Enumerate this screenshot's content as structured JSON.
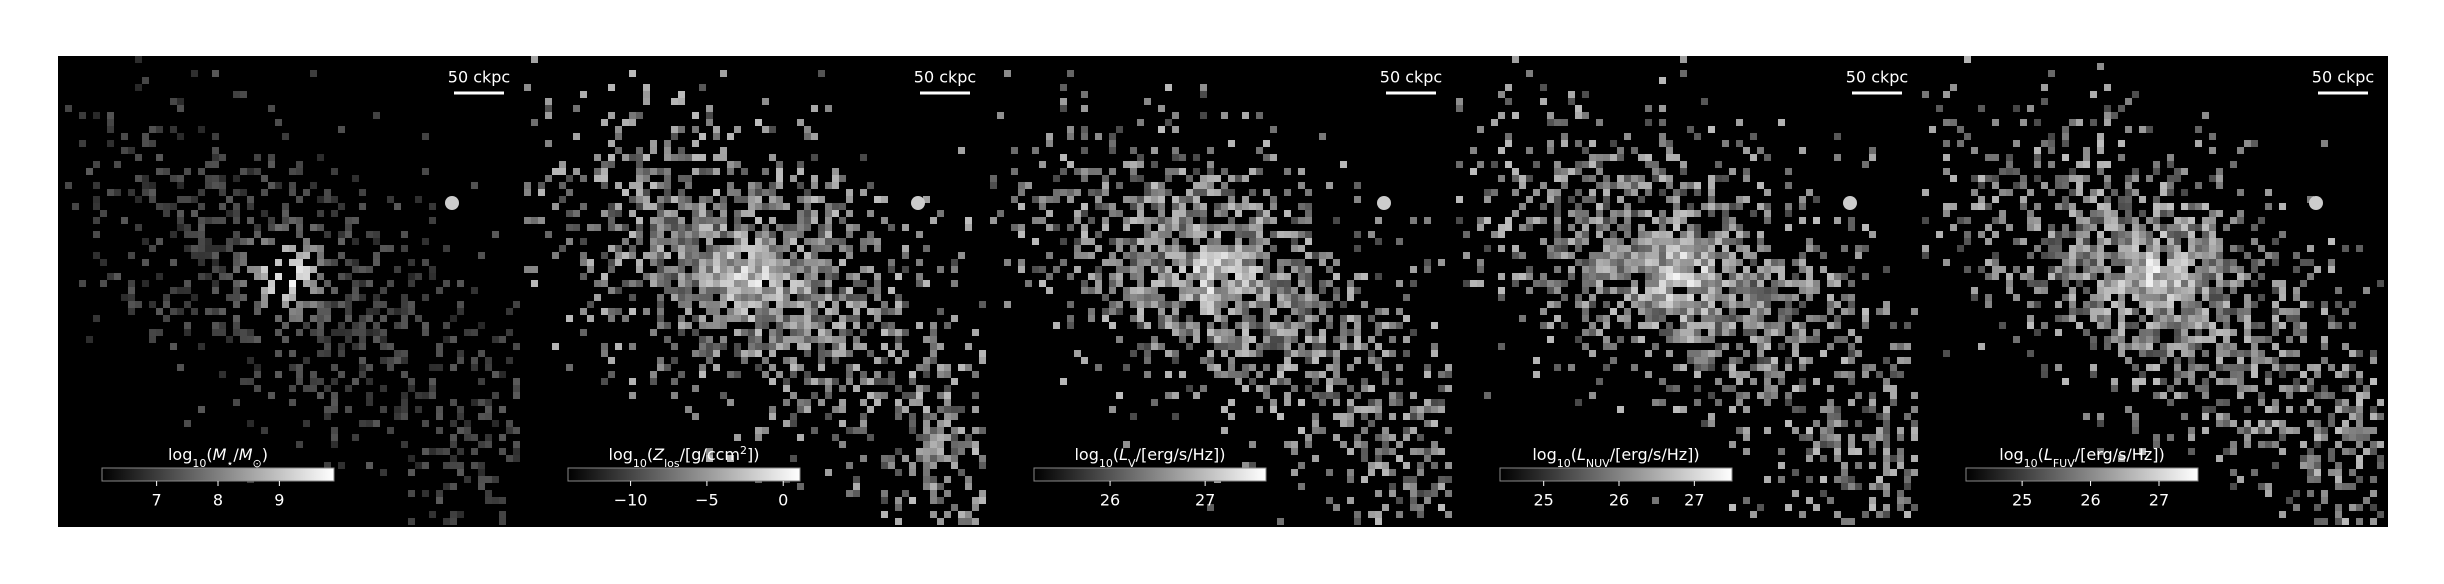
{
  "panels": [
    {
      "scale_label": "50 ckpc",
      "colorbar": {
        "label": [
          {
            "text": "log"
          },
          {
            "text": "10",
            "sub": true
          },
          {
            "text": "("
          },
          {
            "text": "M",
            "italic": true
          },
          {
            "text": "⋆",
            "sub": true
          },
          {
            "text": "/"
          },
          {
            "text": "M",
            "italic": true
          },
          {
            "text": "⊙",
            "sub": true
          },
          {
            "text": ")"
          }
        ],
        "range": [
          6.11,
          9.89
        ],
        "ticks": [
          7,
          8,
          9
        ]
      }
    },
    {
      "scale_label": "50 ckpc",
      "colorbar": {
        "label": [
          {
            "text": "log"
          },
          {
            "text": "10",
            "sub": true
          },
          {
            "text": "("
          },
          {
            "text": "Z",
            "italic": true
          },
          {
            "text": "los",
            "sub": true
          },
          {
            "text": "/[g/ccm"
          },
          {
            "text": "2",
            "sup": true
          },
          {
            "text": "])"
          }
        ],
        "range": [
          -14.1,
          1.1
        ],
        "ticks": [
          {
            "value": -10,
            "label": "−10"
          },
          {
            "value": -5,
            "label": "−5"
          },
          0
        ]
      }
    },
    {
      "scale_label": "50 ckpc",
      "colorbar": {
        "label": [
          {
            "text": "log"
          },
          {
            "text": "10",
            "sub": true
          },
          {
            "text": "("
          },
          {
            "text": "L",
            "italic": true
          },
          {
            "text": "V",
            "sub": true
          },
          {
            "text": "/[erg/s/Hz])"
          }
        ],
        "range": [
          25.2,
          27.64
        ],
        "ticks": [
          26,
          27
        ]
      }
    },
    {
      "scale_label": "50 ckpc",
      "colorbar": {
        "label": [
          {
            "text": "log"
          },
          {
            "text": "10",
            "sub": true
          },
          {
            "text": "("
          },
          {
            "text": "L",
            "italic": true
          },
          {
            "text": "NUV",
            "sub": true
          },
          {
            "text": "/[erg/s/Hz])"
          }
        ],
        "range": [
          24.42,
          27.5
        ],
        "ticks": [
          25,
          26,
          27
        ]
      }
    },
    {
      "scale_label": "50 ckpc",
      "colorbar": {
        "label": [
          {
            "text": "log"
          },
          {
            "text": "10",
            "sub": true
          },
          {
            "text": "("
          },
          {
            "text": "L",
            "italic": true
          },
          {
            "text": "FUV",
            "sub": true
          },
          {
            "text": "/[erg/s/Hz])"
          }
        ],
        "range": [
          24.18,
          27.57
        ],
        "ticks": [
          25,
          26,
          27
        ]
      }
    }
  ]
}
